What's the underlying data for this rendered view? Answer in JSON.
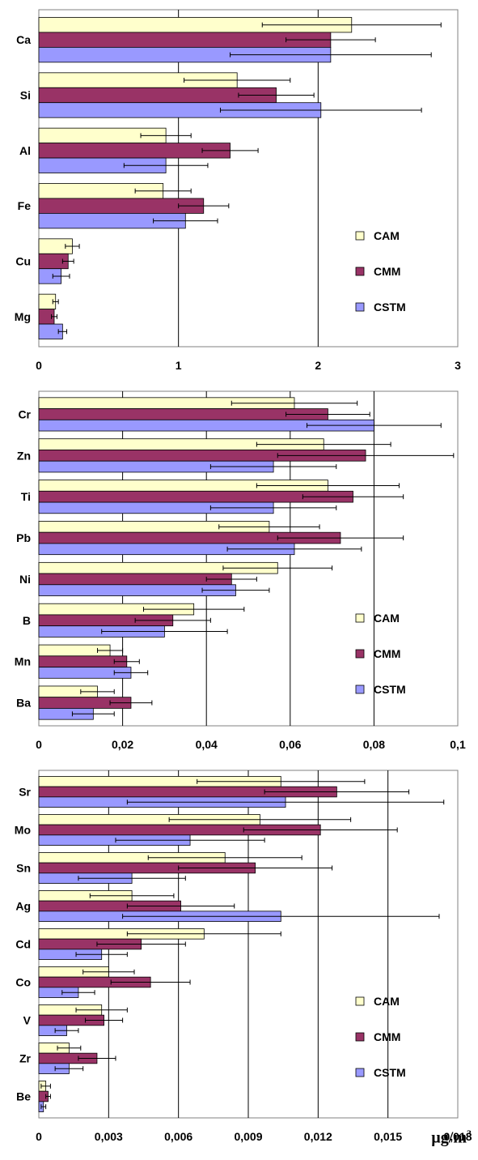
{
  "unit_label": {
    "prefix": "µg/m",
    "power": "3"
  },
  "chart_data": [
    {
      "type": "bar",
      "orientation": "horizontal",
      "categories": [
        "Ca",
        "Si",
        "Al",
        "Fe",
        "Cu",
        "Mg"
      ],
      "xlim": [
        0,
        3
      ],
      "xticks": [
        0,
        1,
        2,
        3
      ],
      "xtick_labels": [
        "0",
        "1",
        "2",
        "3"
      ],
      "grid": true,
      "legend_position": "right",
      "series": [
        {
          "name": "CAM",
          "color": "#ffffcc",
          "values": [
            2.24,
            1.42,
            0.91,
            0.89,
            0.24,
            0.12
          ],
          "errors": [
            0.64,
            0.38,
            0.18,
            0.2,
            0.05,
            0.02
          ]
        },
        {
          "name": "CMM",
          "color": "#993366",
          "values": [
            2.09,
            1.7,
            1.37,
            1.18,
            0.21,
            0.11
          ],
          "errors": [
            0.32,
            0.27,
            0.2,
            0.18,
            0.04,
            0.02
          ]
        },
        {
          "name": "CSTM",
          "color": "#9999ff",
          "values": [
            2.09,
            2.02,
            0.91,
            1.05,
            0.16,
            0.17
          ],
          "errors": [
            0.72,
            0.72,
            0.3,
            0.23,
            0.06,
            0.03
          ]
        }
      ]
    },
    {
      "type": "bar",
      "orientation": "horizontal",
      "categories": [
        "Cr",
        "Zn",
        "Ti",
        "Pb",
        "Ni",
        "B",
        "Mn",
        "Ba"
      ],
      "xlim": [
        0,
        0.1
      ],
      "xticks": [
        0,
        0.02,
        0.04,
        0.06,
        0.08,
        0.1
      ],
      "xtick_labels": [
        "0",
        "0,02",
        "0,04",
        "0,06",
        "0,08",
        "0,1"
      ],
      "grid": true,
      "legend_position": "right",
      "series": [
        {
          "name": "CAM",
          "color": "#ffffcc",
          "values": [
            0.061,
            0.068,
            0.069,
            0.055,
            0.057,
            0.037,
            0.017,
            0.014
          ],
          "errors": [
            0.015,
            0.016,
            0.017,
            0.012,
            0.013,
            0.012,
            0.003,
            0.004
          ]
        },
        {
          "name": "CMM",
          "color": "#993366",
          "values": [
            0.069,
            0.078,
            0.075,
            0.072,
            0.046,
            0.032,
            0.021,
            0.022
          ],
          "errors": [
            0.01,
            0.021,
            0.012,
            0.015,
            0.006,
            0.009,
            0.003,
            0.005
          ]
        },
        {
          "name": "CSTM",
          "color": "#9999ff",
          "values": [
            0.08,
            0.056,
            0.056,
            0.061,
            0.047,
            0.03,
            0.022,
            0.013
          ],
          "errors": [
            0.016,
            0.015,
            0.015,
            0.016,
            0.008,
            0.015,
            0.004,
            0.005
          ]
        }
      ]
    },
    {
      "type": "bar",
      "orientation": "horizontal",
      "categories": [
        "Sr",
        "Mo",
        "Sn",
        "Ag",
        "Cd",
        "Co",
        "V",
        "Zr",
        "Be"
      ],
      "xlim": [
        0,
        0.018
      ],
      "xticks": [
        0,
        0.003,
        0.006,
        0.009,
        0.012,
        0.015,
        0.018
      ],
      "xtick_labels": [
        "0",
        "0,003",
        "0,006",
        "0,009",
        "0,012",
        "0,015",
        "0,018"
      ],
      "grid": true,
      "legend_position": "right",
      "series": [
        {
          "name": "CAM",
          "color": "#ffffcc",
          "values": [
            0.0104,
            0.0095,
            0.008,
            0.004,
            0.0071,
            0.003,
            0.0027,
            0.0013,
            0.0003
          ],
          "errors": [
            0.0036,
            0.0039,
            0.0033,
            0.0018,
            0.0033,
            0.0011,
            0.0011,
            0.0005,
            0.0002
          ]
        },
        {
          "name": "CMM",
          "color": "#993366",
          "values": [
            0.0128,
            0.0121,
            0.0093,
            0.0061,
            0.0044,
            0.0048,
            0.0028,
            0.0025,
            0.0004
          ],
          "errors": [
            0.0031,
            0.0033,
            0.0033,
            0.0023,
            0.0019,
            0.0017,
            0.0008,
            0.0008,
            0.0001
          ]
        },
        {
          "name": "CSTM",
          "color": "#9999ff",
          "values": [
            0.0106,
            0.0065,
            0.004,
            0.0104,
            0.0027,
            0.0017,
            0.0012,
            0.0013,
            0.0002
          ],
          "errors": [
            0.0068,
            0.0032,
            0.0023,
            0.0068,
            0.0011,
            0.0007,
            0.0005,
            0.0006,
            0.0001
          ]
        }
      ]
    }
  ]
}
